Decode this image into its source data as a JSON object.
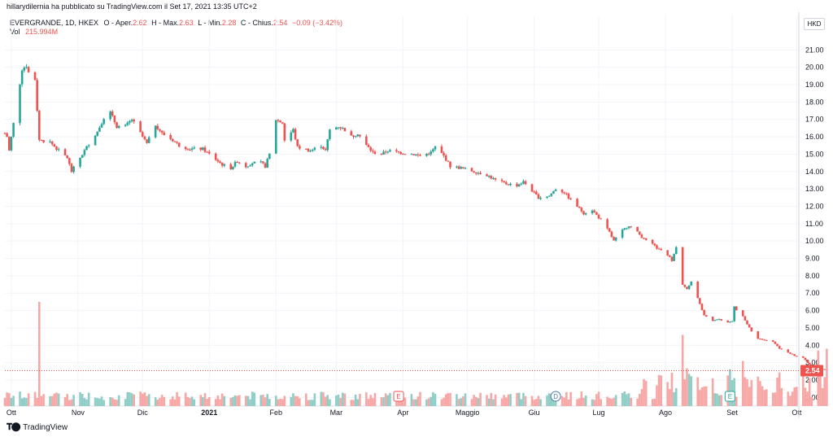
{
  "header": {
    "published_by": "hillarydilernia ha pubblicato su TradingView.com il Set 17, 2021 13:35 UTC+2",
    "symbol_line": "EVERGRANDE, 1D, HKEX",
    "ohlc": {
      "open_label": "O - Aper.",
      "open": "2.62",
      "high_label": "H - Max.",
      "high": "2.63",
      "low_label": "L - Min.",
      "low": "2.28",
      "close_label": "C - Chius.",
      "close": "2.54",
      "change": "−0.09 (−3.42%)"
    },
    "volume_label": "Vol",
    "volume_value": "215.994M"
  },
  "currency_button": "HKD",
  "last_price_label": "2.54",
  "brand": {
    "name": "TradingView"
  },
  "colors": {
    "up": "#26a69a",
    "down": "#ef5350",
    "vol_up": "#90cdc6",
    "vol_down": "#f7a7a5",
    "grid": "#f0f3fa"
  },
  "markers": [
    {
      "label": "E",
      "date": "2021-03-30",
      "color": "#ef5350"
    },
    {
      "label": "D",
      "date": "2021-06-11",
      "color": "#4b7ea8"
    },
    {
      "label": "E",
      "date": "2021-08-31",
      "color": "#26a69a"
    }
  ],
  "chart_data": {
    "type": "candlestick",
    "title": "EVERGRANDE, 1D, HKEX",
    "x_tick_labels": [
      "Ott",
      "Nov",
      "Dic",
      "2021",
      "Feb",
      "Mar",
      "Apr",
      "Maggio",
      "Giu",
      "Lug",
      "Ago",
      "Set",
      "Ott"
    ],
    "x_tick_dates": [
      "2020-10-01",
      "2020-11-01",
      "2020-12-01",
      "2021-01-01",
      "2021-02-01",
      "2021-03-01",
      "2021-04-01",
      "2021-05-01",
      "2021-06-01",
      "2021-07-01",
      "2021-08-01",
      "2021-09-01",
      "2021-10-01"
    ],
    "xlim": [
      "2020-09-28",
      "2021-10-02"
    ],
    "y_tick_labels": [
      "1.00",
      "2.00",
      "3.00",
      "4.00",
      "5.00",
      "6.00",
      "7.00",
      "8.00",
      "9.00",
      "10.00",
      "11.00",
      "12.00",
      "13.00",
      "14.00",
      "15.00",
      "16.00",
      "17.00",
      "18.00",
      "19.00",
      "20.00",
      "21.00"
    ],
    "ylim": [
      0.5,
      22.0
    ],
    "y_axis_position": "right",
    "currency": "HKD",
    "last_close": 2.54,
    "anchors": [
      {
        "date": "2020-09-28",
        "close": 16.2
      },
      {
        "date": "2020-09-29",
        "close": 16.0
      },
      {
        "date": "2020-09-30",
        "close": 15.2
      },
      {
        "date": "2020-10-05",
        "close": 19.1
      },
      {
        "date": "2020-10-06",
        "close": 19.9
      },
      {
        "date": "2020-10-08",
        "close": 20.1
      },
      {
        "date": "2020-10-09",
        "close": 19.7
      },
      {
        "date": "2020-10-12",
        "close": 19.3
      },
      {
        "date": "2020-10-14",
        "close": 15.8
      },
      {
        "date": "2020-10-19",
        "close": 15.7
      },
      {
        "date": "2020-10-23",
        "close": 15.2
      },
      {
        "date": "2020-10-27",
        "close": 14.8
      },
      {
        "date": "2020-10-29",
        "close": 14.0
      },
      {
        "date": "2020-11-03",
        "close": 15.0
      },
      {
        "date": "2020-11-06",
        "close": 15.6
      },
      {
        "date": "2020-11-10",
        "close": 16.3
      },
      {
        "date": "2020-11-13",
        "close": 17.1
      },
      {
        "date": "2020-11-16",
        "close": 17.4
      },
      {
        "date": "2020-11-19",
        "close": 16.6
      },
      {
        "date": "2020-11-23",
        "close": 16.6
      },
      {
        "date": "2020-11-26",
        "close": 17.0
      },
      {
        "date": "2020-11-30",
        "close": 16.2
      },
      {
        "date": "2020-12-03",
        "close": 15.6
      },
      {
        "date": "2020-12-07",
        "close": 16.7
      },
      {
        "date": "2020-12-10",
        "close": 16.2
      },
      {
        "date": "2020-12-15",
        "close": 15.8
      },
      {
        "date": "2020-12-18",
        "close": 15.5
      },
      {
        "date": "2020-12-23",
        "close": 15.3
      },
      {
        "date": "2020-12-29",
        "close": 15.3
      },
      {
        "date": "2021-01-04",
        "close": 14.7
      },
      {
        "date": "2021-01-07",
        "close": 14.4
      },
      {
        "date": "2021-01-11",
        "close": 14.2
      },
      {
        "date": "2021-01-14",
        "close": 14.6
      },
      {
        "date": "2021-01-18",
        "close": 14.3
      },
      {
        "date": "2021-01-21",
        "close": 14.5
      },
      {
        "date": "2021-01-25",
        "close": 14.5
      },
      {
        "date": "2021-01-27",
        "close": 14.3
      },
      {
        "date": "2021-01-29",
        "close": 15.0
      },
      {
        "date": "2021-02-01",
        "close": 17.0
      },
      {
        "date": "2021-02-04",
        "close": 16.8
      },
      {
        "date": "2021-02-05",
        "close": 15.8
      },
      {
        "date": "2021-02-09",
        "close": 16.4
      },
      {
        "date": "2021-02-11",
        "close": 15.4
      },
      {
        "date": "2021-02-17",
        "close": 15.2
      },
      {
        "date": "2021-02-22",
        "close": 15.5
      },
      {
        "date": "2021-02-24",
        "close": 15.2
      },
      {
        "date": "2021-02-26",
        "close": 16.4
      },
      {
        "date": "2021-03-02",
        "close": 16.6
      },
      {
        "date": "2021-03-05",
        "close": 16.4
      },
      {
        "date": "2021-03-08",
        "close": 16.0
      },
      {
        "date": "2021-03-11",
        "close": 16.2
      },
      {
        "date": "2021-03-15",
        "close": 15.5
      },
      {
        "date": "2021-03-18",
        "close": 15.1
      },
      {
        "date": "2021-03-22",
        "close": 15.0
      },
      {
        "date": "2021-03-25",
        "close": 15.2
      },
      {
        "date": "2021-03-30",
        "close": 15.1
      },
      {
        "date": "2021-04-06",
        "close": 15.0
      },
      {
        "date": "2021-04-09",
        "close": 14.9
      },
      {
        "date": "2021-04-14",
        "close": 15.1
      },
      {
        "date": "2021-04-16",
        "close": 15.4
      },
      {
        "date": "2021-04-20",
        "close": 14.9
      },
      {
        "date": "2021-04-23",
        "close": 14.3
      },
      {
        "date": "2021-04-28",
        "close": 14.2
      },
      {
        "date": "2021-05-04",
        "close": 14.0
      },
      {
        "date": "2021-05-10",
        "close": 13.8
      },
      {
        "date": "2021-05-14",
        "close": 13.5
      },
      {
        "date": "2021-05-19",
        "close": 13.3
      },
      {
        "date": "2021-05-24",
        "close": 13.2
      },
      {
        "date": "2021-05-27",
        "close": 13.4
      },
      {
        "date": "2021-05-31",
        "close": 12.9
      },
      {
        "date": "2021-06-03",
        "close": 12.5
      },
      {
        "date": "2021-06-08",
        "close": 12.6
      },
      {
        "date": "2021-06-11",
        "close": 13.0
      },
      {
        "date": "2021-06-15",
        "close": 12.8
      },
      {
        "date": "2021-06-17",
        "close": 12.5
      },
      {
        "date": "2021-06-21",
        "close": 12.0
      },
      {
        "date": "2021-06-24",
        "close": 11.6
      },
      {
        "date": "2021-06-28",
        "close": 11.8
      },
      {
        "date": "2021-06-30",
        "close": 11.5
      },
      {
        "date": "2021-07-02",
        "close": 11.2
      },
      {
        "date": "2021-07-06",
        "close": 10.5
      },
      {
        "date": "2021-07-08",
        "close": 10.0
      },
      {
        "date": "2021-07-12",
        "close": 10.6
      },
      {
        "date": "2021-07-15",
        "close": 10.9
      },
      {
        "date": "2021-07-19",
        "close": 10.5
      },
      {
        "date": "2021-07-22",
        "close": 10.1
      },
      {
        "date": "2021-07-26",
        "close": 9.8
      },
      {
        "date": "2021-07-29",
        "close": 9.5
      },
      {
        "date": "2021-08-02",
        "close": 9.2
      },
      {
        "date": "2021-08-04",
        "close": 8.9
      },
      {
        "date": "2021-08-06",
        "close": 9.7
      },
      {
        "date": "2021-08-09",
        "close": 7.5
      },
      {
        "date": "2021-08-11",
        "close": 7.2
      },
      {
        "date": "2021-08-13",
        "close": 7.7
      },
      {
        "date": "2021-08-16",
        "close": 6.7
      },
      {
        "date": "2021-08-19",
        "close": 5.7
      },
      {
        "date": "2021-08-23",
        "close": 5.4
      },
      {
        "date": "2021-08-26",
        "close": 5.5
      },
      {
        "date": "2021-08-30",
        "close": 5.3
      },
      {
        "date": "2021-09-01",
        "close": 5.4
      },
      {
        "date": "2021-09-02",
        "close": 6.2
      },
      {
        "date": "2021-09-03",
        "close": 6.0
      },
      {
        "date": "2021-09-06",
        "close": 5.7
      },
      {
        "date": "2021-09-08",
        "close": 5.2
      },
      {
        "date": "2021-09-10",
        "close": 4.8
      },
      {
        "date": "2021-09-13",
        "close": 4.4
      },
      {
        "date": "2021-09-16",
        "close": 4.3
      },
      {
        "date": "2021-09-20",
        "close": 4.2
      },
      {
        "date": "2021-09-23",
        "close": 3.8
      },
      {
        "date": "2021-09-27",
        "close": 3.6
      },
      {
        "date": "2021-09-30",
        "close": 3.4
      },
      {
        "date": "2021-10-04",
        "close": 3.3
      },
      {
        "date": "2021-10-06",
        "close": 3.0
      },
      {
        "date": "2021-10-08",
        "close": 2.8
      },
      {
        "date": "2021-10-11",
        "close": 2.7
      },
      {
        "date": "2021-10-13",
        "close": 2.62
      },
      {
        "date": "2021-10-15",
        "close": 2.54
      }
    ],
    "volume_spikes": [
      {
        "date": "2020-10-14",
        "volume": 6.0
      },
      {
        "date": "2021-08-09",
        "volume": 4.1
      },
      {
        "date": "2021-09-06",
        "volume": 2.6
      },
      {
        "date": "2021-10-11",
        "volume": 3.2
      },
      {
        "date": "2021-10-15",
        "volume": 3.3
      }
    ]
  }
}
